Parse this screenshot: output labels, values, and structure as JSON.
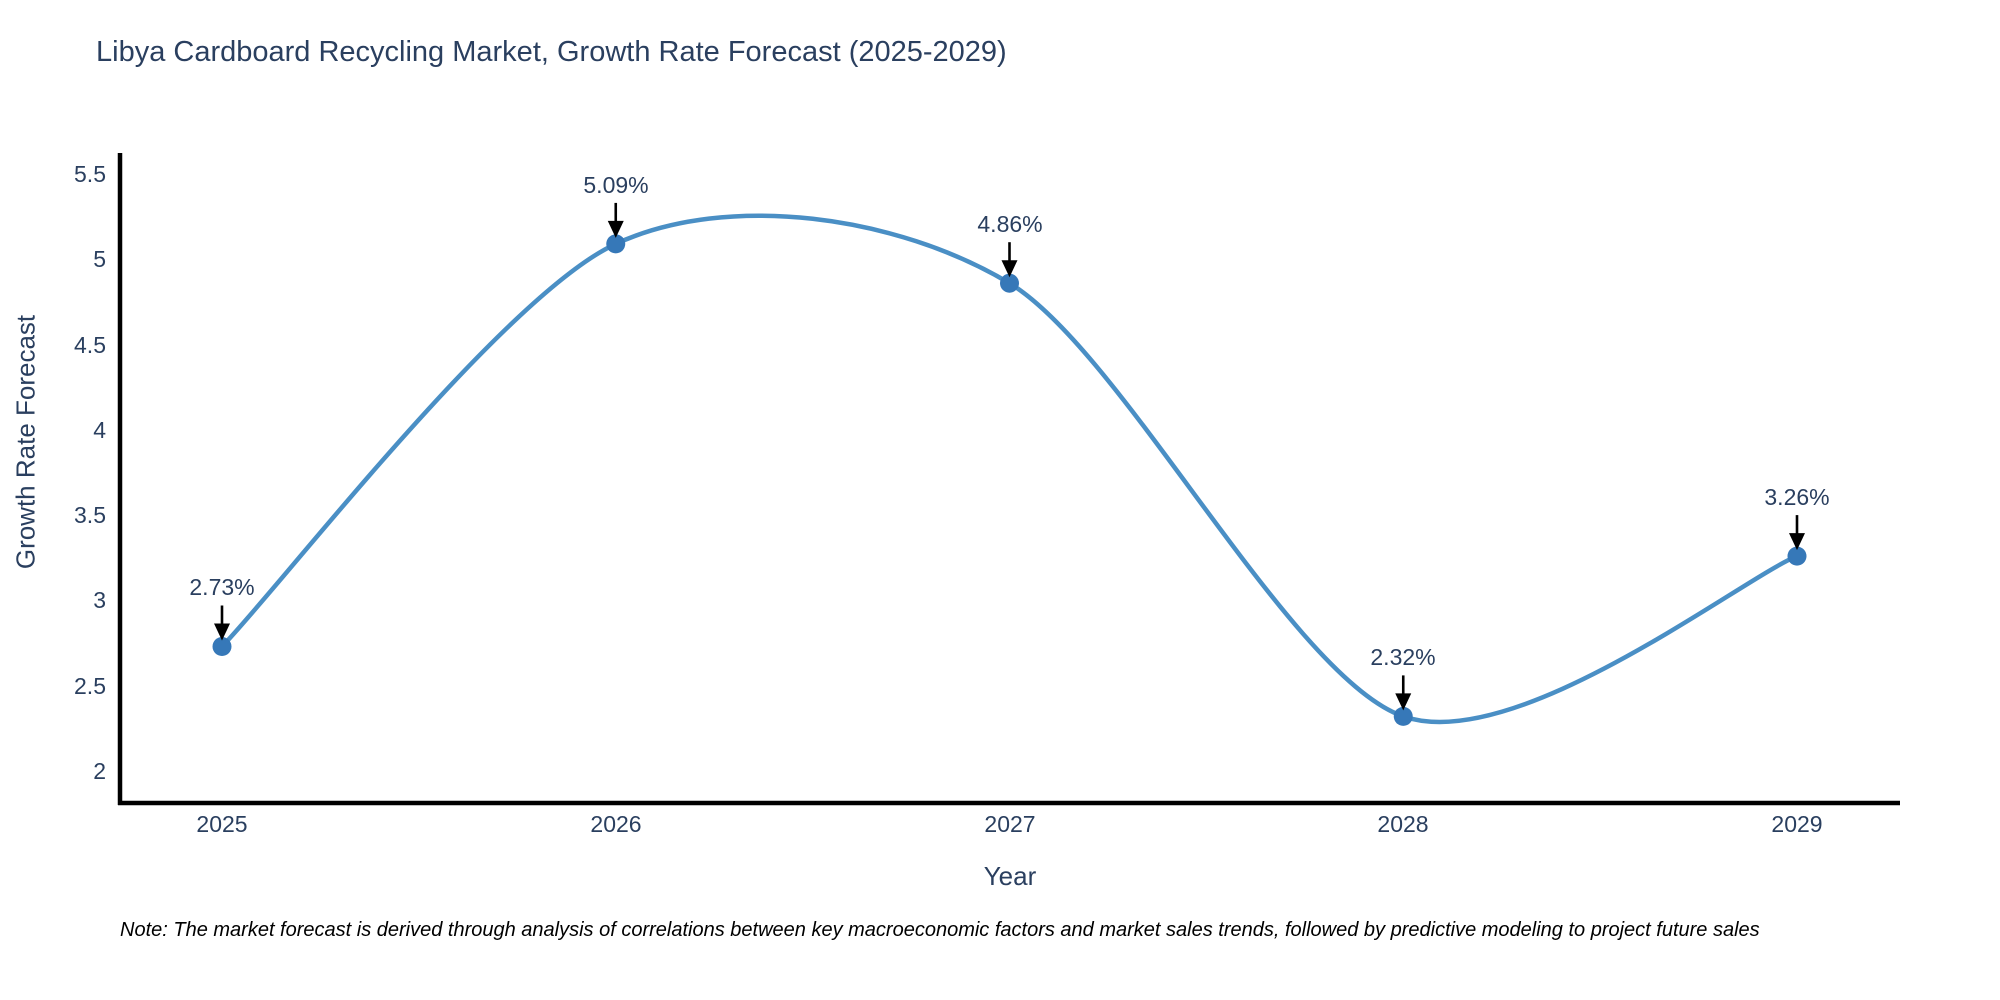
{
  "title": "Libya Cardboard Recycling Market, Growth Rate Forecast (2025-2029)",
  "note": "Note: The market forecast is derived through analysis of correlations between key macroeconomic factors and market sales trends, followed by predictive modeling to project future sales",
  "chart_data": {
    "type": "line",
    "title": "Libya Cardboard Recycling Market, Growth Rate Forecast (2025-2029)",
    "xlabel": "Year",
    "ylabel": "Growth Rate Forecast",
    "x": [
      "2025",
      "2026",
      "2027",
      "2028",
      "2029"
    ],
    "values": [
      2.73,
      5.09,
      4.86,
      2.32,
      3.26
    ],
    "point_labels": [
      "2.73%",
      "5.09%",
      "4.86%",
      "2.32%",
      "3.26%"
    ],
    "yticks": [
      2,
      2.5,
      3,
      3.5,
      4,
      4.5,
      5,
      5.5
    ],
    "ylim": [
      1.8,
      5.6
    ],
    "grid": false,
    "legend": "none",
    "line_shape": "spline",
    "marker": "circle",
    "annotations": "value labels with downward arrows at each point"
  },
  "colors": {
    "background": "#ffffff",
    "title_text": "#2a3f5f",
    "axis_text": "#2a3f5f",
    "axis_line": "#000000",
    "line": "#4a8fc5",
    "marker": "#3678b8",
    "arrow": "#000000",
    "note_text": "#000000"
  }
}
